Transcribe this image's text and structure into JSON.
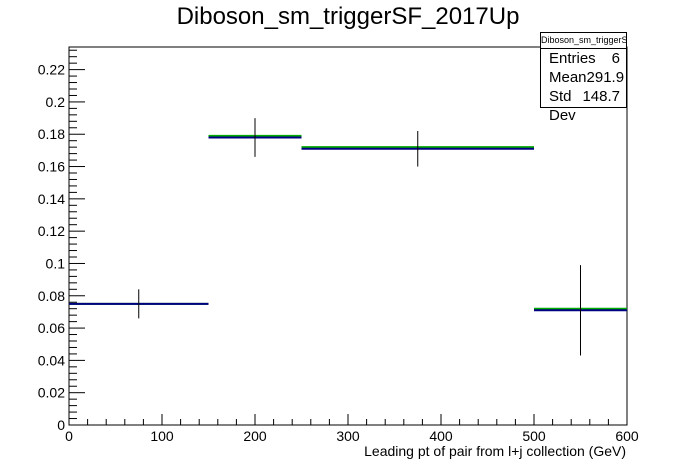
{
  "chart_data": {
    "type": "histogram",
    "title": "Diboson_sm_triggerSF_2017Up",
    "xlabel": "Leading pt of pair from l+j collection (GeV)",
    "ylabel": "",
    "xlim": [
      0,
      600
    ],
    "ylim": [
      0,
      0.234
    ],
    "x_ticks": [
      "0",
      "100",
      "200",
      "300",
      "400",
      "500",
      "600"
    ],
    "y_ticks": [
      "0",
      "0.02",
      "0.04",
      "0.06",
      "0.08",
      "0.1",
      "0.12",
      "0.14",
      "0.16",
      "0.18",
      "0.2",
      "0.22"
    ],
    "bins": [
      {
        "low": 0,
        "high": 150,
        "center": 75,
        "value": 0.075,
        "error": 0.009
      },
      {
        "low": 150,
        "high": 250,
        "center": 200,
        "value": 0.178,
        "error": 0.012
      },
      {
        "low": 250,
        "high": 500,
        "center": 375,
        "value": 0.171,
        "error": 0.011
      },
      {
        "low": 500,
        "high": 600,
        "center": 550,
        "value": 0.071,
        "error": 0.028
      }
    ],
    "shifted_values": [
      0.075,
      0.179,
      0.172,
      0.072
    ],
    "colors": {
      "nominal": "#000080",
      "shifted": "#00aa00",
      "errorbar": "#000000"
    },
    "stats": {
      "name": "Diboson_sm_triggerSF_2017Up",
      "entries_label": "Entries",
      "entries": "6",
      "mean_label": "Mean",
      "mean": "291.9",
      "stddev_label": "Std Dev",
      "stddev": "148.7"
    }
  }
}
